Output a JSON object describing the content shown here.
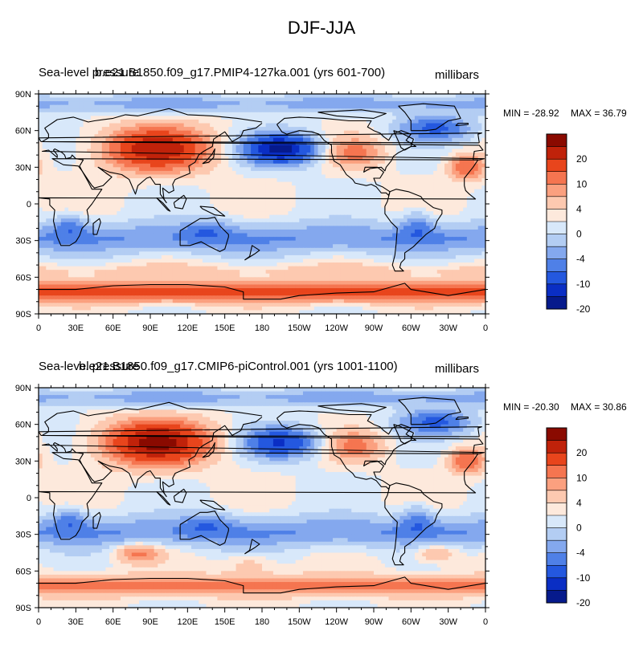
{
  "title": "DJF-JJA",
  "variable": "Sea-level pressure",
  "units": "millibars",
  "lat_ticks": [
    "90N",
    "60N",
    "30N",
    "0",
    "30S",
    "60S",
    "90S"
  ],
  "lon_ticks": [
    "0",
    "30E",
    "60E",
    "90E",
    "120E",
    "150E",
    "180",
    "150W",
    "120W",
    "90W",
    "60W",
    "30W",
    "0"
  ],
  "colorbar": {
    "labels": [
      "20",
      "10",
      "4",
      "0",
      "-4",
      "-10",
      "-20"
    ],
    "colors": [
      "#8a0a00",
      "#c0220a",
      "#e8451c",
      "#f57550",
      "#fba07f",
      "#fdc9b0",
      "#fde9dc",
      "#d8e8fa",
      "#b3cdf3",
      "#84a8ee",
      "#4f80e7",
      "#2458df",
      "#0a2ec4",
      "#061a8c"
    ]
  },
  "panels": [
    {
      "case": "b.e21.B1850.f09_g17.PMIP4-127ka.001 (yrs 601-700)",
      "min_label": "MIN = -28.92",
      "max_label": "MAX =  36.79",
      "min_value": -28.92,
      "max_value": 36.79
    },
    {
      "case": "b.e21.B1850.f09_g17.CMIP6-piControl.001 (yrs 1001-1100)",
      "min_label": "MIN = -20.30",
      "max_label": "MAX =  30.86",
      "min_value": -20.3,
      "max_value": 30.86
    }
  ]
}
